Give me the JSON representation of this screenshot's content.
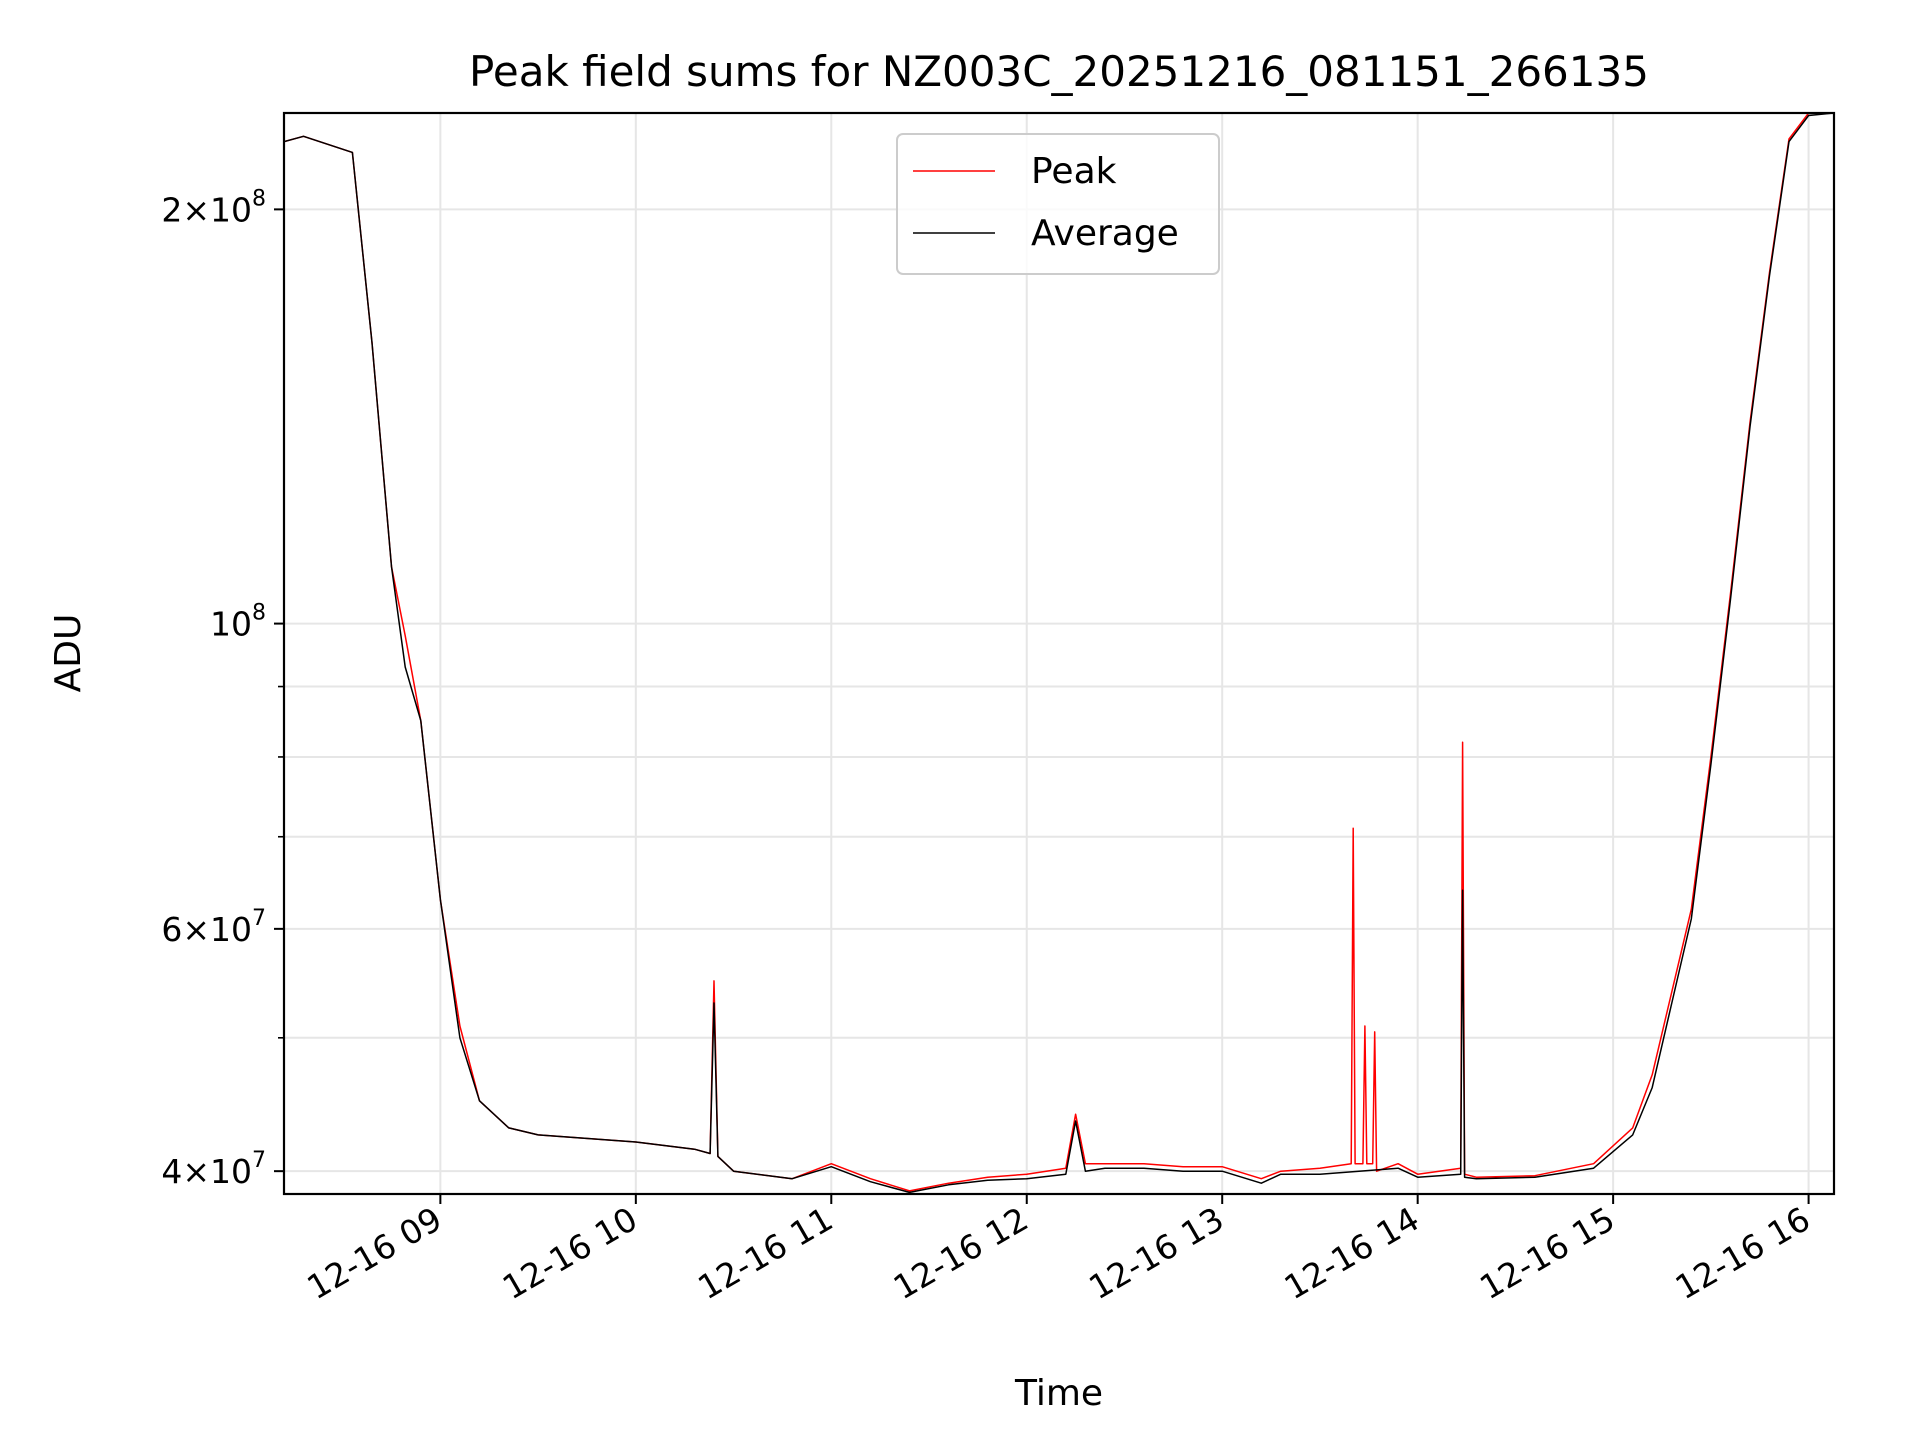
{
  "chart_data": {
    "type": "line",
    "title": "Peak field sums for NZ003C_20251216_081151_266135",
    "xlabel": "Time",
    "ylabel": "ADU",
    "yscale": "log",
    "ylim": [
      38500000,
      235000000
    ],
    "xlim_hours": [
      8.2,
      16.13
    ],
    "grid": true,
    "legend_position": "upper center",
    "colors": {
      "Peak": "#ff0000",
      "Average": "#000000",
      "grid": "#e6e6e6"
    },
    "x_ticks": [
      {
        "value": 9,
        "label": "12-16 09"
      },
      {
        "value": 10,
        "label": "12-16 10"
      },
      {
        "value": 11,
        "label": "12-16 11"
      },
      {
        "value": 12,
        "label": "12-16 12"
      },
      {
        "value": 13,
        "label": "12-16 13"
      },
      {
        "value": 14,
        "label": "12-16 14"
      },
      {
        "value": 15,
        "label": "12-16 15"
      },
      {
        "value": 16,
        "label": "12-16 16"
      }
    ],
    "y_major_ticks": [
      {
        "value": 40000000,
        "base": "4×10",
        "exp": "7"
      },
      {
        "value": 60000000,
        "base": "6×10",
        "exp": "7"
      },
      {
        "value": 100000000,
        "base": "10",
        "exp": "8"
      },
      {
        "value": 200000000,
        "base": "2×10",
        "exp": "8"
      }
    ],
    "y_minor_ticks": [
      50000000,
      70000000,
      80000000,
      90000000
    ],
    "series": [
      {
        "name": "Peak",
        "x": [
          8.2,
          8.3,
          8.55,
          8.65,
          8.75,
          8.82,
          8.9,
          9.0,
          9.1,
          9.2,
          9.35,
          9.5,
          10.0,
          10.3,
          10.38,
          10.4,
          10.42,
          10.5,
          10.8,
          11.0,
          11.2,
          11.4,
          11.6,
          11.8,
          12.0,
          12.2,
          12.25,
          12.3,
          12.4,
          12.6,
          12.8,
          13.0,
          13.2,
          13.3,
          13.5,
          13.66,
          13.67,
          13.68,
          13.72,
          13.73,
          13.74,
          13.77,
          13.78,
          13.79,
          13.9,
          14.0,
          14.22,
          14.23,
          14.24,
          14.3,
          14.6,
          14.9,
          15.1,
          15.2,
          15.3,
          15.4,
          15.5,
          15.6,
          15.7,
          15.8,
          15.9,
          16.0,
          16.13
        ],
        "y": [
          224000000,
          226000000,
          220000000,
          160000000,
          110000000,
          98000000,
          85000000,
          63000000,
          51000000,
          45000000,
          43000000,
          42500000,
          42000000,
          41500000,
          41200000,
          55000000,
          41000000,
          40000000,
          39500000,
          40500000,
          39500000,
          38700000,
          39200000,
          39600000,
          39800000,
          40200000,
          44000000,
          40500000,
          40500000,
          40500000,
          40300000,
          40300000,
          39500000,
          40000000,
          40200000,
          40500000,
          71000000,
          40500000,
          40500000,
          51000000,
          40500000,
          40500000,
          50500000,
          40000000,
          40500000,
          39800000,
          40200000,
          82000000,
          39800000,
          39600000,
          39700000,
          40500000,
          43000000,
          47000000,
          54000000,
          62000000,
          80000000,
          105000000,
          140000000,
          180000000,
          225000000,
          235000000,
          235000000
        ]
      },
      {
        "name": "Average",
        "x": [
          8.2,
          8.3,
          8.55,
          8.65,
          8.75,
          8.82,
          8.9,
          9.0,
          9.1,
          9.2,
          9.35,
          9.5,
          10.0,
          10.3,
          10.38,
          10.4,
          10.42,
          10.5,
          10.8,
          11.0,
          11.2,
          11.4,
          11.6,
          11.8,
          12.0,
          12.2,
          12.25,
          12.3,
          12.4,
          12.6,
          12.8,
          13.0,
          13.2,
          13.3,
          13.5,
          13.7,
          13.9,
          14.0,
          14.22,
          14.23,
          14.24,
          14.3,
          14.6,
          14.9,
          15.1,
          15.2,
          15.3,
          15.4,
          15.5,
          15.6,
          15.7,
          15.8,
          15.9,
          16.0,
          16.13
        ],
        "y": [
          224000000,
          226000000,
          220000000,
          160000000,
          110000000,
          93000000,
          85000000,
          63000000,
          50000000,
          45000000,
          43000000,
          42500000,
          42000000,
          41500000,
          41200000,
          53000000,
          41000000,
          40000000,
          39500000,
          40300000,
          39300000,
          38600000,
          39100000,
          39400000,
          39500000,
          39800000,
          43500000,
          40000000,
          40200000,
          40200000,
          40000000,
          40000000,
          39200000,
          39800000,
          39800000,
          40000000,
          40200000,
          39600000,
          39800000,
          64000000,
          39600000,
          39500000,
          39600000,
          40200000,
          42500000,
          46000000,
          53000000,
          61000000,
          79000000,
          104000000,
          139000000,
          179000000,
          224000000,
          234000000,
          235000000
        ]
      }
    ]
  }
}
